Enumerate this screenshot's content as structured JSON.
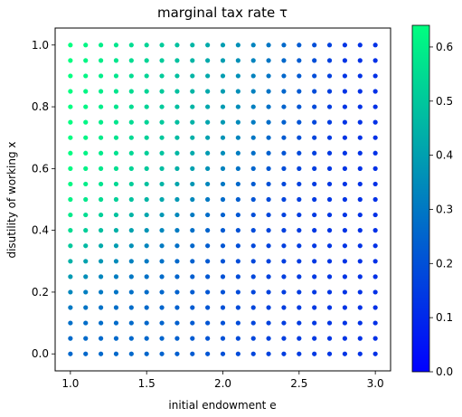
{
  "chart_data": {
    "type": "scatter",
    "title": "marginal tax rate τ",
    "xlabel": "initial endowment e",
    "ylabel": "disutility of working x",
    "xlim": [
      0.9,
      3.1
    ],
    "ylim": [
      -0.055,
      1.055
    ],
    "xticks": [
      "1.0",
      "1.5",
      "2.0",
      "2.5",
      "3.0"
    ],
    "yticks": [
      "0.0",
      "0.2",
      "0.4",
      "0.6",
      "0.8",
      "1.0"
    ],
    "x_grid": [
      1.0,
      1.1,
      1.2,
      1.3,
      1.4,
      1.5,
      1.6,
      1.7,
      1.8,
      1.9,
      2.0,
      2.1,
      2.2,
      2.3,
      2.4,
      2.5,
      2.6,
      2.7,
      2.8,
      2.9,
      3.0
    ],
    "y_grid": [
      0.0,
      0.05,
      0.1,
      0.15,
      0.2,
      0.25,
      0.3,
      0.35,
      0.4,
      0.45,
      0.5,
      0.55,
      0.6,
      0.65,
      0.7,
      0.75,
      0.8,
      0.85,
      0.9,
      0.95,
      1.0
    ],
    "value_rule": "tau(e, x) depends on e and x; values range 0 to 0.64",
    "colorbar": {
      "colormap": "winter",
      "min": 0.0,
      "max": 0.64,
      "ticks": [
        "0.0",
        "0.1",
        "0.2",
        "0.3",
        "0.4",
        "0.5",
        "0.6"
      ],
      "color_low": "#0000ff",
      "color_high": "#00ff80"
    },
    "grid": false,
    "legend": "none"
  }
}
